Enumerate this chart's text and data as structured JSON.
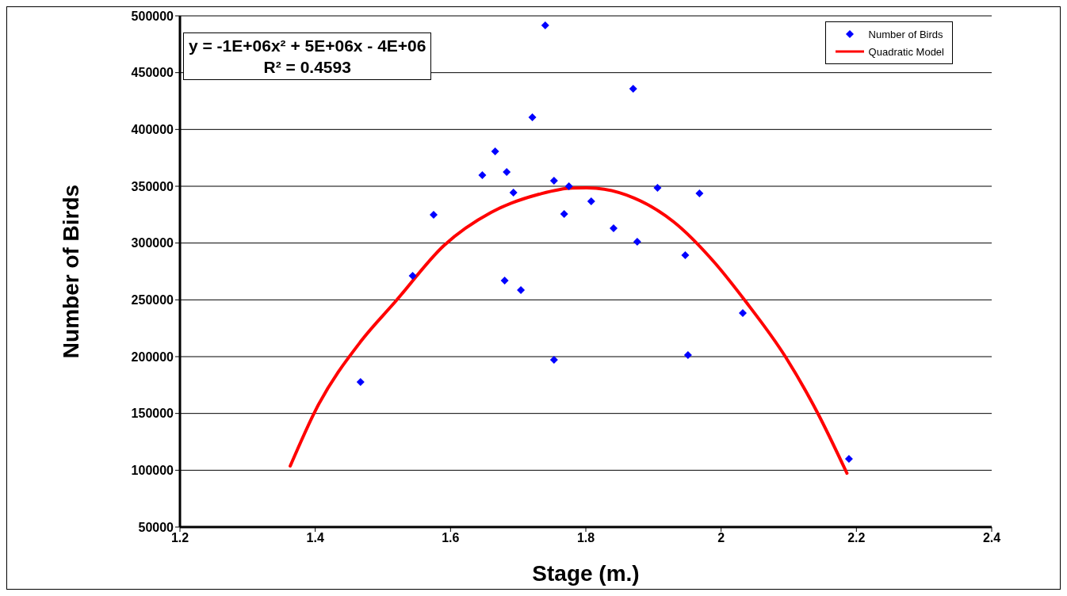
{
  "chart_data": {
    "type": "scatter",
    "xlabel": "Stage (m.)",
    "ylabel": "Number of Birds",
    "xlim": [
      1.2,
      2.4
    ],
    "xticks": [
      1.2,
      1.4,
      1.6,
      1.8,
      2,
      2.2,
      2.4
    ],
    "ylim": [
      50000,
      500000
    ],
    "yticks": [
      50000,
      100000,
      150000,
      200000,
      250000,
      300000,
      350000,
      400000,
      450000,
      500000
    ],
    "grid": "y",
    "legend": "top right",
    "annotations": [
      "y = -1E+06x² + 5E+06x - 4E+06",
      "R² = 0.4593"
    ],
    "series": [
      {
        "name": "Number of Birds",
        "marker": "diamond",
        "color": "#0000ff",
        "x": [
          1.467,
          1.544,
          1.575,
          1.647,
          1.666,
          1.683,
          1.693,
          1.68,
          1.704,
          1.721,
          1.74,
          1.753,
          1.753,
          1.768,
          1.775,
          1.808,
          1.841,
          1.87,
          1.876,
          1.906,
          1.947,
          1.951,
          1.968,
          2.032,
          2.189
        ],
        "values": [
          177700,
          271200,
          324900,
          359800,
          380700,
          362600,
          344400,
          266900,
          258600,
          410700,
          491600,
          354900,
          197200,
          325600,
          350000,
          336700,
          313000,
          435800,
          301200,
          348600,
          289300,
          201400,
          343700,
          238400,
          110000
        ]
      },
      {
        "name": "Quadratic Model",
        "type": "line",
        "marker": "none",
        "line_style": "solid",
        "color": "#ff0000",
        "x": [
          1.363,
          1.402,
          1.468,
          1.519,
          1.59,
          1.66,
          1.731,
          1.78,
          1.801,
          1.872,
          1.93,
          1.989,
          2.036,
          2.095,
          2.142,
          2.186
        ],
        "values": [
          103700,
          154600,
          213900,
          248800,
          297700,
          327000,
          343000,
          348500,
          348600,
          339500,
          318600,
          283700,
          248800,
          200000,
          151200,
          97400
        ]
      }
    ]
  }
}
